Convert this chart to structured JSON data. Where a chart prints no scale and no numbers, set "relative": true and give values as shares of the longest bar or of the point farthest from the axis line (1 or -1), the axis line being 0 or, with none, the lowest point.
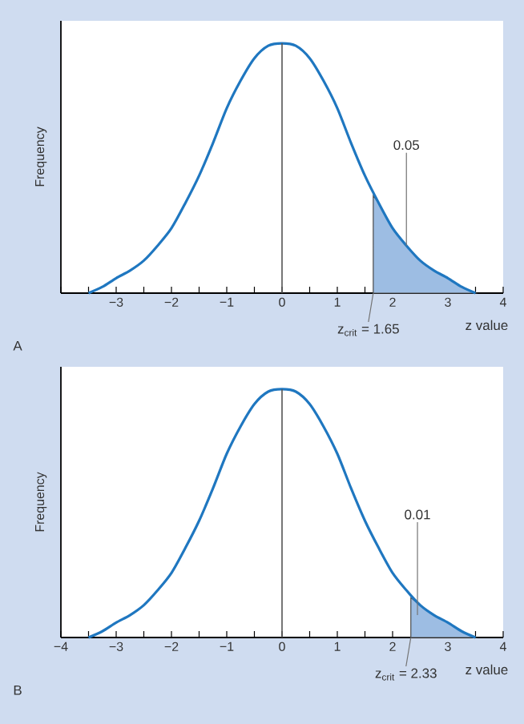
{
  "chart_data": [
    {
      "type": "line",
      "xlabel": "z value",
      "ylabel": "Frequency",
      "relative": true,
      "xlim": [
        -4,
        4
      ],
      "xticks": [
        {
          "value": -4,
          "label": null
        },
        {
          "value": -3.5,
          "label": null
        },
        {
          "value": -3,
          "label": "−3"
        },
        {
          "value": -2.5,
          "label": null
        },
        {
          "value": -2,
          "label": "−2"
        },
        {
          "value": -1.5,
          "label": null
        },
        {
          "value": -1,
          "label": "−1"
        },
        {
          "value": -0.5,
          "label": null
        },
        {
          "value": 0,
          "label": "0"
        },
        {
          "value": 0.5,
          "label": null
        },
        {
          "value": 1,
          "label": "1"
        },
        {
          "value": 1.5,
          "label": null
        },
        {
          "value": 2,
          "label": "2"
        },
        {
          "value": 2.5,
          "label": null
        },
        {
          "value": 3,
          "label": "3"
        },
        {
          "value": 3.5,
          "label": null
        },
        {
          "value": 4,
          "label": "4"
        }
      ],
      "series": [
        {
          "color": "#1f77c0",
          "x": [
            -3.5,
            -3.25,
            -3,
            -2.75,
            -2.5,
            -2.25,
            -2,
            -1.75,
            -1.5,
            -1.25,
            -1,
            -0.75,
            -0.5,
            -0.25,
            0,
            0.25,
            0.5,
            0.75,
            1,
            1.25,
            1.5,
            1.75,
            2,
            2.25,
            2.5,
            2.75,
            3,
            3.25,
            3.5
          ],
          "values": [
            0,
            0.025,
            0.06,
            0.09,
            0.13,
            0.19,
            0.26,
            0.36,
            0.47,
            0.6,
            0.74,
            0.85,
            0.94,
            0.99,
            1,
            0.99,
            0.94,
            0.85,
            0.74,
            0.6,
            0.47,
            0.36,
            0.26,
            0.19,
            0.13,
            0.09,
            0.06,
            0.025,
            0
          ]
        },
        {
          "type": "area",
          "color": "#9dbde3",
          "x": [
            1.65,
            1.75,
            2,
            2.25,
            2.5,
            2.75,
            3,
            3.25,
            3.5
          ],
          "values": [
            0.39,
            0.36,
            0.26,
            0.19,
            0.13,
            0.09,
            0.06,
            0.025,
            0
          ]
        }
      ],
      "ref_lines": [
        {
          "axis": "x",
          "value": 0,
          "color": "#555555"
        }
      ],
      "annotations": [
        {
          "text": "0.05",
          "x": 2.25,
          "y": 0.19
        },
        {
          "text": "z$_{crit}$ = 1.65",
          "x": 1.65,
          "y": 0
        },
        "A"
      ]
    },
    {
      "type": "line",
      "xlabel": "z value",
      "ylabel": "Frequency",
      "relative": true,
      "xlim": [
        -4,
        4
      ],
      "xticks": [
        {
          "value": -4,
          "label": "−4"
        },
        {
          "value": -3.5,
          "label": null
        },
        {
          "value": -3,
          "label": "−3"
        },
        {
          "value": -2.5,
          "label": null
        },
        {
          "value": -2,
          "label": "−2"
        },
        {
          "value": -1.5,
          "label": null
        },
        {
          "value": -1,
          "label": "−1"
        },
        {
          "value": -0.5,
          "label": null
        },
        {
          "value": 0,
          "label": "0"
        },
        {
          "value": 0.5,
          "label": null
        },
        {
          "value": 1,
          "label": "1"
        },
        {
          "value": 1.5,
          "label": null
        },
        {
          "value": 2,
          "label": "2"
        },
        {
          "value": 2.5,
          "label": null
        },
        {
          "value": 3,
          "label": "3"
        },
        {
          "value": 3.5,
          "label": null
        },
        {
          "value": 4,
          "label": "4"
        }
      ],
      "series": [
        {
          "color": "#1f77c0",
          "x": [
            -3.5,
            -3.25,
            -3,
            -2.75,
            -2.5,
            -2.25,
            -2,
            -1.75,
            -1.5,
            -1.25,
            -1,
            -0.75,
            -0.5,
            -0.25,
            0,
            0.25,
            0.5,
            0.75,
            1,
            1.25,
            1.5,
            1.75,
            2,
            2.25,
            2.5,
            2.75,
            3,
            3.25,
            3.5
          ],
          "values": [
            0,
            0.025,
            0.06,
            0.09,
            0.13,
            0.19,
            0.26,
            0.36,
            0.47,
            0.6,
            0.74,
            0.85,
            0.94,
            0.99,
            1,
            0.99,
            0.94,
            0.85,
            0.74,
            0.6,
            0.47,
            0.36,
            0.26,
            0.19,
            0.13,
            0.09,
            0.06,
            0.025,
            0
          ]
        },
        {
          "type": "area",
          "color": "#9dbde3",
          "x": [
            2.33,
            2.5,
            2.75,
            3,
            3.25,
            3.5
          ],
          "values": [
            0.16,
            0.13,
            0.09,
            0.06,
            0.025,
            0
          ]
        }
      ],
      "ref_lines": [
        {
          "axis": "x",
          "value": 0,
          "color": "#555555"
        }
      ],
      "annotations": [
        {
          "text": "0.01",
          "x": 2.45,
          "y": 0.09
        },
        {
          "text": "z$_{crit}$ = 2.33",
          "x": 2.33,
          "y": 0
        },
        "B"
      ]
    }
  ]
}
